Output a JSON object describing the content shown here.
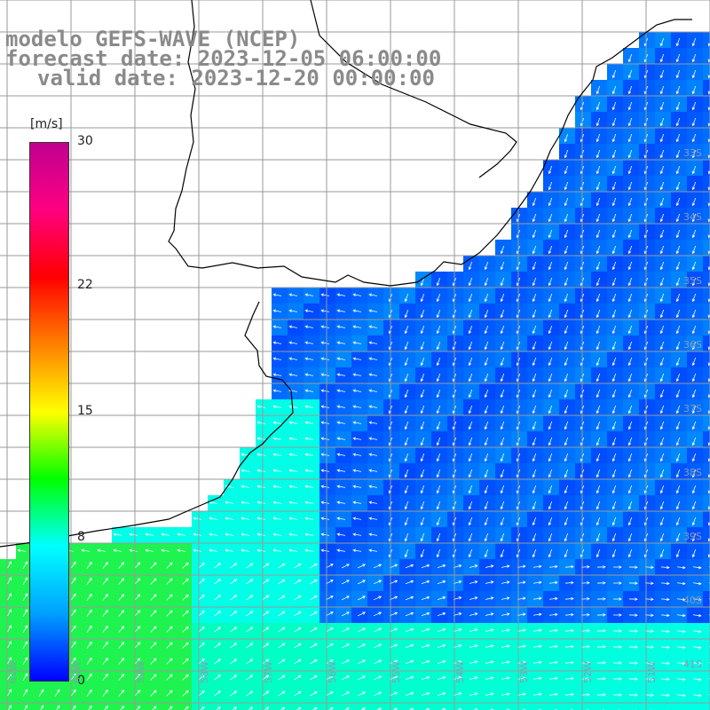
{
  "title": {
    "model": "modelo GEFS-WAVE (NCEP)",
    "forecast": "forecast date: 2023-12-05 06:00:00",
    "valid": "valid date: 2023-12-20 00:00:00"
  },
  "colorbar": {
    "unit": "[m/s]",
    "min": 0,
    "max": 30,
    "ticks": [
      "0",
      "8",
      "15",
      "22",
      "30"
    ],
    "colors": [
      "#0000ff",
      "#00a0ff",
      "#00ffff",
      "#00ff00",
      "#ffff00",
      "#ff8000",
      "#ff0000",
      "#ff0080",
      "#c00090"
    ]
  },
  "lat_labels": [
    "33S",
    "34S",
    "35S",
    "36S",
    "37S",
    "38S",
    "39S",
    "40S",
    "41S"
  ],
  "lon_labels": [
    "61W",
    "60W",
    "59W",
    "58W",
    "57W",
    "56W",
    "55W",
    "54W",
    "53W",
    "52W",
    "51W",
    "50W"
  ],
  "colors": {
    "land": "#ffffff",
    "grid": "#9a9a9a",
    "coast": "#000000",
    "arrow": "#ffffff"
  }
}
